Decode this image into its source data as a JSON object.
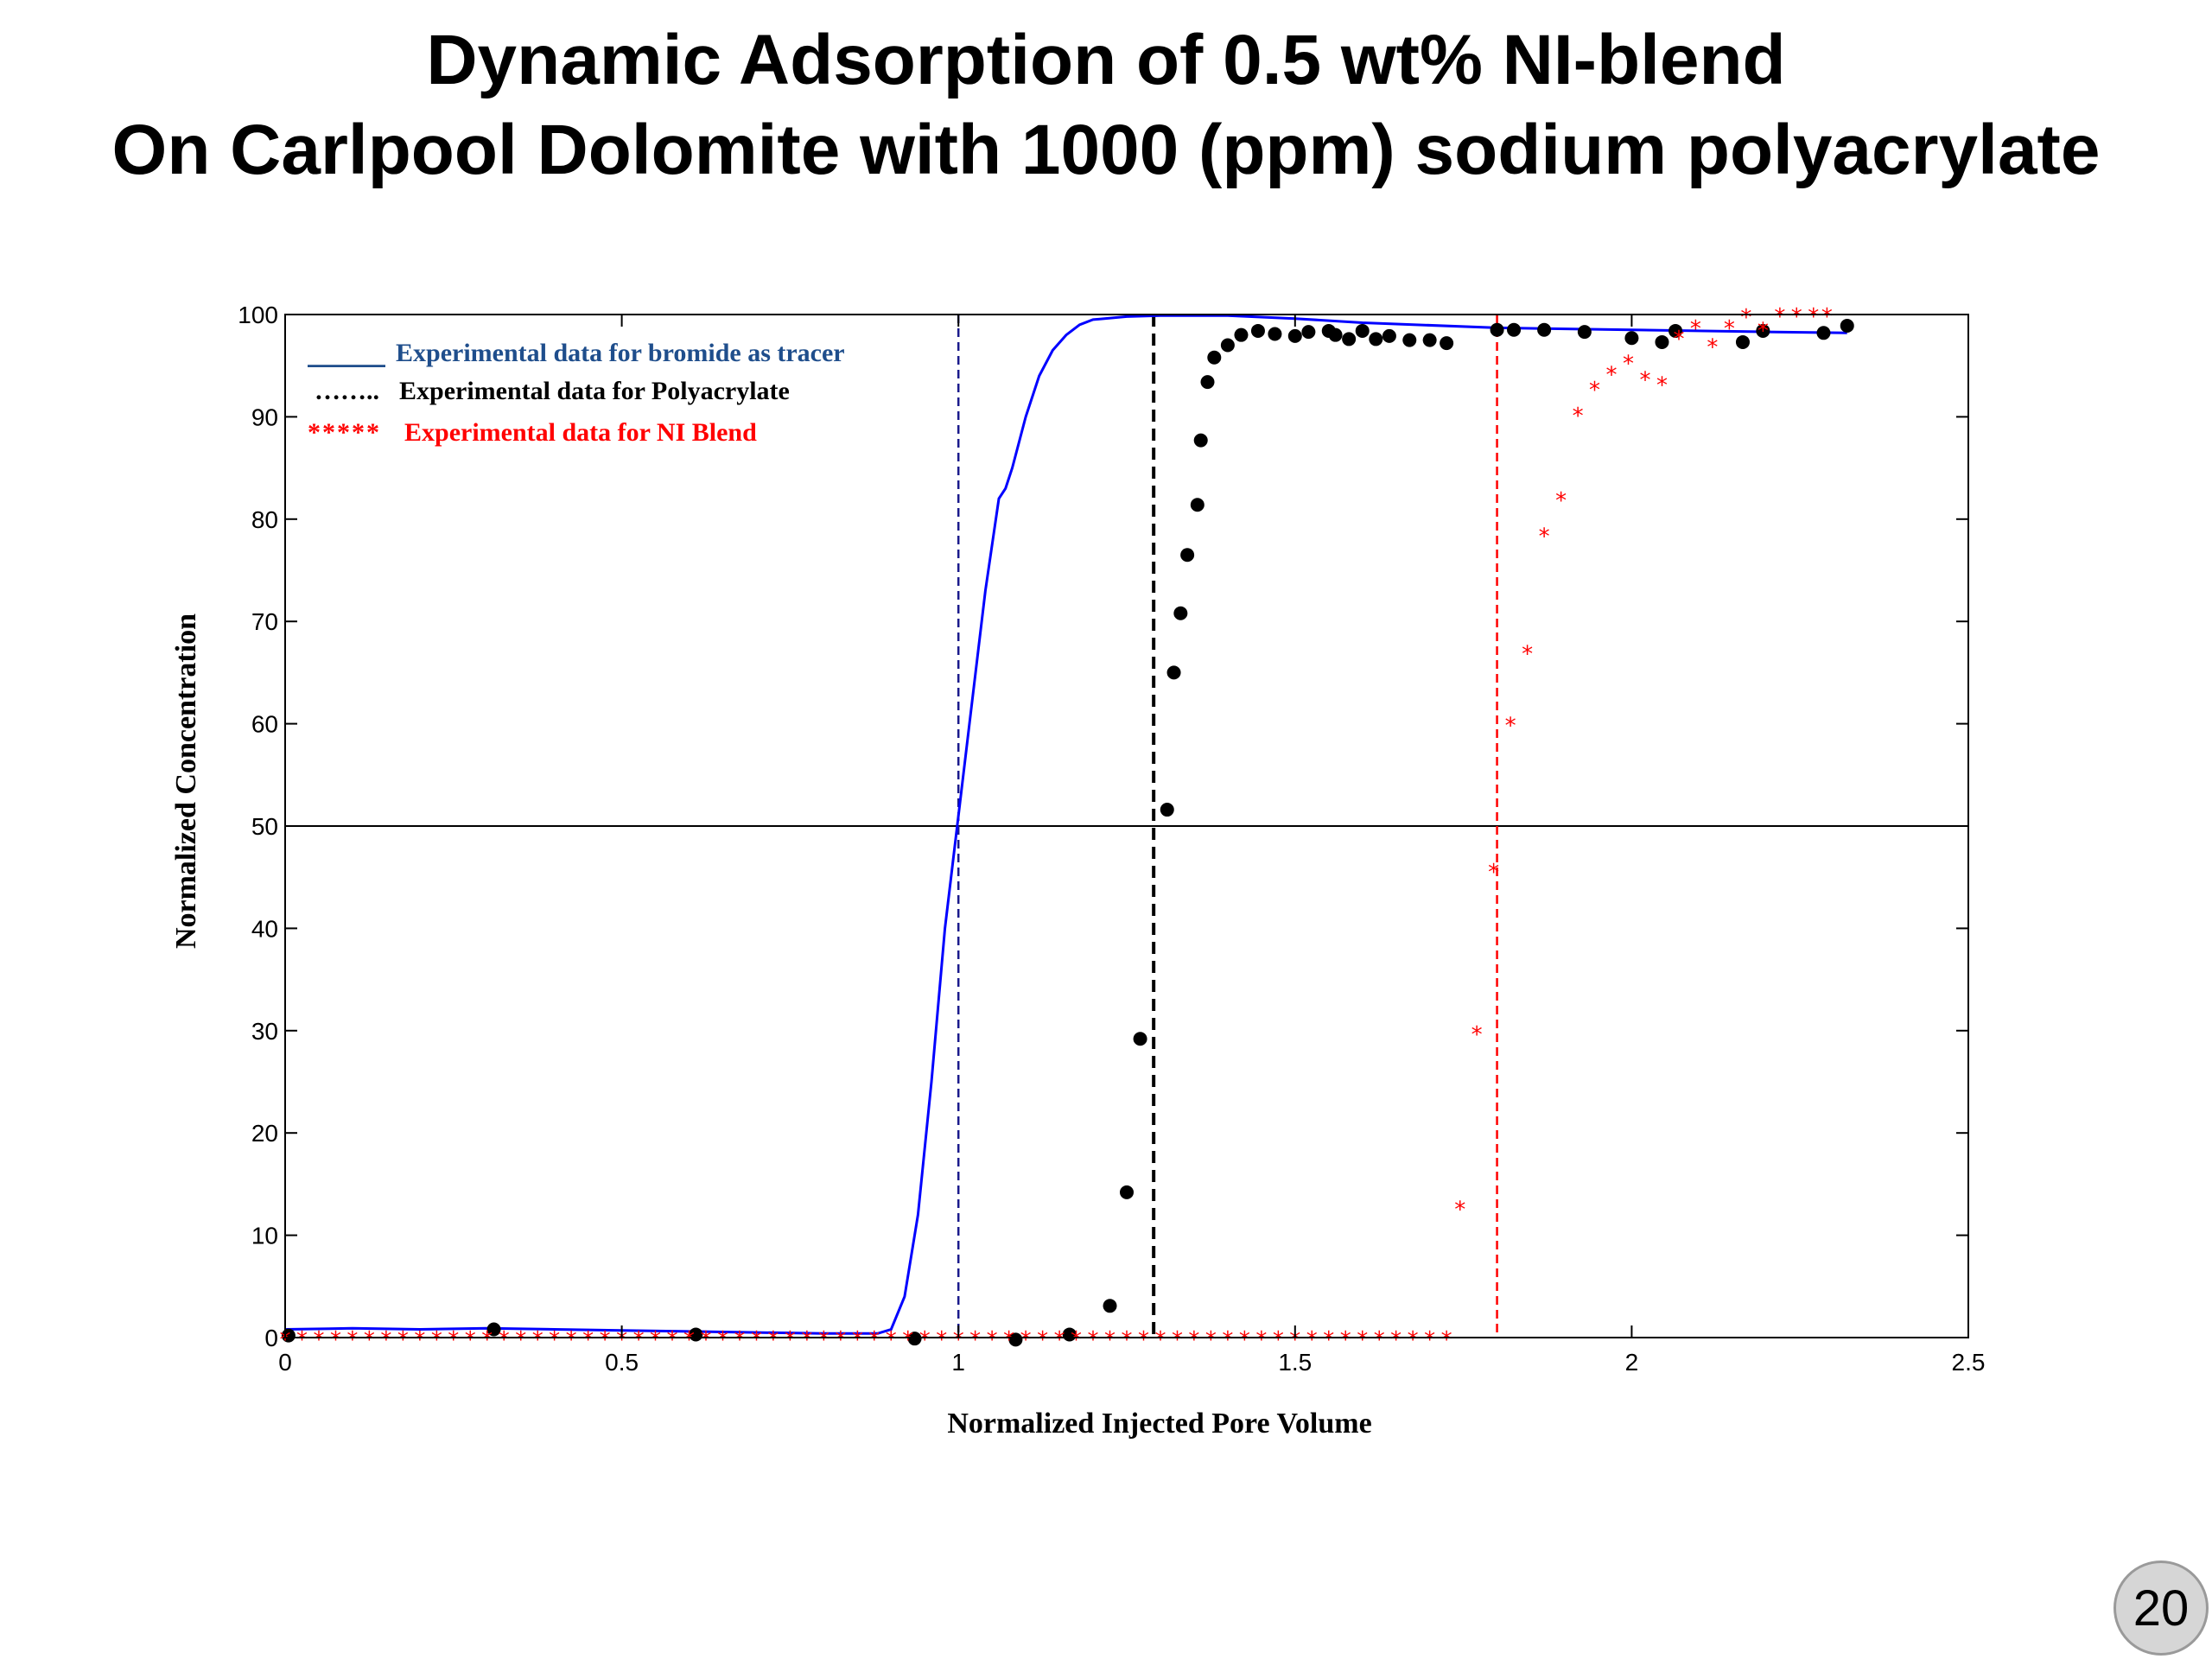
{
  "slide": {
    "title_line1": "Dynamic Adsorption of 0.5 wt% NI-blend",
    "title_line2": "On Carlpool Dolomite with 1000 (ppm) sodium polyacrylate",
    "page_number": "20"
  },
  "chart_data": {
    "type": "scatter",
    "title": "",
    "xlabel": "Normalized Injected Pore Volume",
    "ylabel": "Normalized Concentration",
    "xlim": [
      0,
      2.5
    ],
    "ylim": [
      0,
      100
    ],
    "xticks": [
      "0",
      "0.5",
      "1",
      "1.5",
      "2",
      "2.5"
    ],
    "yticks": [
      "0",
      "10",
      "20",
      "30",
      "40",
      "50",
      "60",
      "70",
      "80",
      "90",
      "100"
    ],
    "grid": false,
    "legend_position": "top-left",
    "legend": [
      {
        "marker": "______",
        "label": "Experimental data for bromide as tracer",
        "color": "#1f4e8c"
      },
      {
        "marker": "……..",
        "label": "Experimental data for Polyacrylate",
        "color": "#000000"
      },
      {
        "marker": "*****",
        "label": "Experimental data for NI Blend",
        "color": "#ff0000"
      }
    ],
    "series": [
      {
        "style": "line",
        "color": "#0000ff",
        "x": [
          0,
          0.1,
          0.2,
          0.3,
          0.4,
          0.5,
          0.6,
          0.7,
          0.8,
          0.85,
          0.88,
          0.9,
          0.92,
          0.94,
          0.96,
          0.98,
          1.0,
          1.02,
          1.04,
          1.06,
          1.07,
          1.08,
          1.1,
          1.12,
          1.14,
          1.16,
          1.18,
          1.2,
          1.25,
          1.3,
          1.4,
          1.5,
          1.6,
          1.8,
          2.0,
          2.2,
          2.32
        ],
        "y": [
          0.8,
          0.9,
          0.8,
          0.9,
          0.8,
          0.7,
          0.6,
          0.5,
          0.4,
          0.4,
          0.4,
          0.8,
          4,
          12,
          25,
          40,
          51,
          62,
          73,
          82,
          83,
          85,
          90,
          94,
          96.5,
          98,
          99,
          99.5,
          99.8,
          99.9,
          99.9,
          99.6,
          99.2,
          98.7,
          98.5,
          98.3,
          98.2
        ]
      },
      {
        "style": "dot",
        "color": "#000000",
        "x": [
          0.005,
          0.31,
          0.61,
          0.935,
          1.085,
          1.165,
          1.225,
          1.25,
          1.27,
          1.31,
          1.32,
          1.33,
          1.34,
          1.355,
          1.36,
          1.37,
          1.38,
          1.4,
          1.42,
          1.445,
          1.47,
          1.5,
          1.52,
          1.55,
          1.56,
          1.58,
          1.6,
          1.62,
          1.64,
          1.67,
          1.7,
          1.725,
          1.8,
          1.825,
          1.87,
          1.93,
          2.0,
          2.045,
          2.065,
          2.165,
          2.195,
          2.285,
          2.32
        ],
        "y": [
          0.2,
          0.8,
          0.3,
          -0.1,
          -0.2,
          0.3,
          3.1,
          14.2,
          29.2,
          51.6,
          65,
          70.8,
          76.5,
          81.4,
          87.7,
          93.4,
          95.8,
          97,
          98,
          98.4,
          98.1,
          97.9,
          98.3,
          98.4,
          98,
          97.6,
          98.4,
          97.6,
          97.9,
          97.5,
          97.5,
          97.2,
          98.5,
          98.5,
          98.5,
          98.3,
          97.7,
          97.3,
          98.4,
          97.3,
          98.4,
          98.2,
          98.9
        ]
      },
      {
        "style": "star",
        "color": "#ff0000",
        "x": [
          0.0,
          0.025,
          0.05,
          0.075,
          0.1,
          0.125,
          0.15,
          0.175,
          0.2,
          0.225,
          0.25,
          0.275,
          0.3,
          0.325,
          0.35,
          0.375,
          0.4,
          0.425,
          0.45,
          0.475,
          0.5,
          0.525,
          0.55,
          0.575,
          0.6,
          0.625,
          0.65,
          0.675,
          0.7,
          0.725,
          0.75,
          0.775,
          0.8,
          0.825,
          0.85,
          0.875,
          0.9,
          0.925,
          0.95,
          0.975,
          1.0,
          1.025,
          1.05,
          1.075,
          1.1,
          1.125,
          1.15,
          1.175,
          1.2,
          1.225,
          1.25,
          1.275,
          1.3,
          1.325,
          1.35,
          1.375,
          1.4,
          1.425,
          1.45,
          1.475,
          1.5,
          1.525,
          1.55,
          1.575,
          1.6,
          1.625,
          1.65,
          1.675,
          1.7,
          1.725,
          1.745,
          1.77,
          1.795,
          1.82,
          1.845,
          1.87,
          1.895,
          1.92,
          1.945,
          1.97,
          1.995,
          2.02,
          2.045,
          2.07,
          2.095,
          2.12,
          2.145,
          2.17,
          2.195,
          2.22,
          2.245,
          2.27,
          2.29
        ],
        "y": [
          0,
          0,
          0,
          0,
          0,
          0,
          0,
          0,
          0,
          0,
          0,
          0,
          0,
          0,
          0,
          0,
          0,
          0,
          0,
          0,
          0,
          0,
          0,
          0,
          0,
          0,
          0,
          0,
          0,
          0,
          0,
          0,
          0,
          0,
          0,
          0,
          0,
          0,
          0,
          0,
          0,
          0,
          0,
          0,
          0,
          0,
          0,
          0,
          0,
          0,
          0,
          0,
          0,
          0,
          0,
          0,
          0,
          0,
          0,
          0,
          0,
          0,
          0,
          0,
          0,
          0,
          0,
          0,
          0,
          0,
          12.7,
          29.8,
          45.7,
          60,
          67,
          78.5,
          82,
          90.3,
          92.8,
          94.3,
          95.4,
          93.8,
          93.3,
          97.8,
          98.8,
          97,
          98.8,
          99.9,
          98.6,
          100,
          100,
          100,
          100
        ]
      }
    ],
    "reference_lines": {
      "horizontal_y": 50,
      "vertical": [
        {
          "x": 1.0,
          "color": "#1a1a8c"
        },
        {
          "x": 1.29,
          "color": "#000000"
        },
        {
          "x": 1.8,
          "color": "#ff0000"
        }
      ]
    }
  }
}
